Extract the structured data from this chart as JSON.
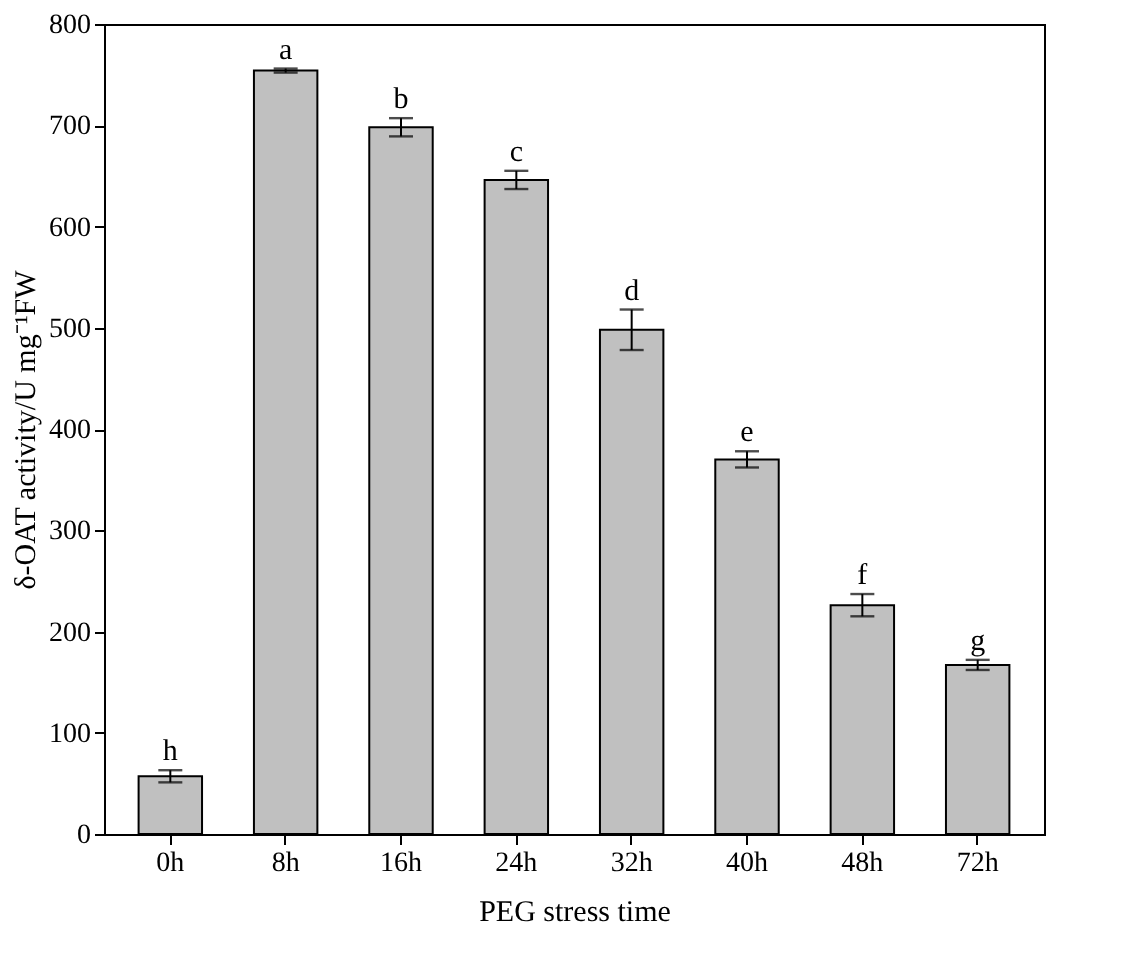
{
  "chart_data": {
    "type": "bar",
    "xlabel": "PEG stress time",
    "ylabel": "δ-OAT activity/U mg⁻¹FW",
    "categories": [
      "0h",
      "8h",
      "16h",
      "24h",
      "32h",
      "40h",
      "48h",
      "72h"
    ],
    "values": [
      57,
      754,
      698,
      646,
      498,
      370,
      226,
      167
    ],
    "errors": [
      6,
      2,
      9,
      9,
      20,
      8,
      11,
      5
    ],
    "color": "#c0c0c0",
    "ylim": [
      0,
      800
    ],
    "yticks": [
      0,
      100,
      200,
      300,
      400,
      500,
      600,
      700,
      800
    ],
    "grid": false,
    "annotations": [
      {
        "text": "h",
        "x": "0h",
        "y": 63
      },
      {
        "text": "a",
        "x": "8h",
        "y": 756
      },
      {
        "text": "b",
        "x": "16h",
        "y": 707
      },
      {
        "text": "c",
        "x": "24h",
        "y": 655
      },
      {
        "text": "d",
        "x": "32h",
        "y": 518
      },
      {
        "text": "e",
        "x": "40h",
        "y": 378
      },
      {
        "text": "f",
        "x": "48h",
        "y": 237
      },
      {
        "text": "g",
        "x": "72h",
        "y": 172
      }
    ]
  }
}
